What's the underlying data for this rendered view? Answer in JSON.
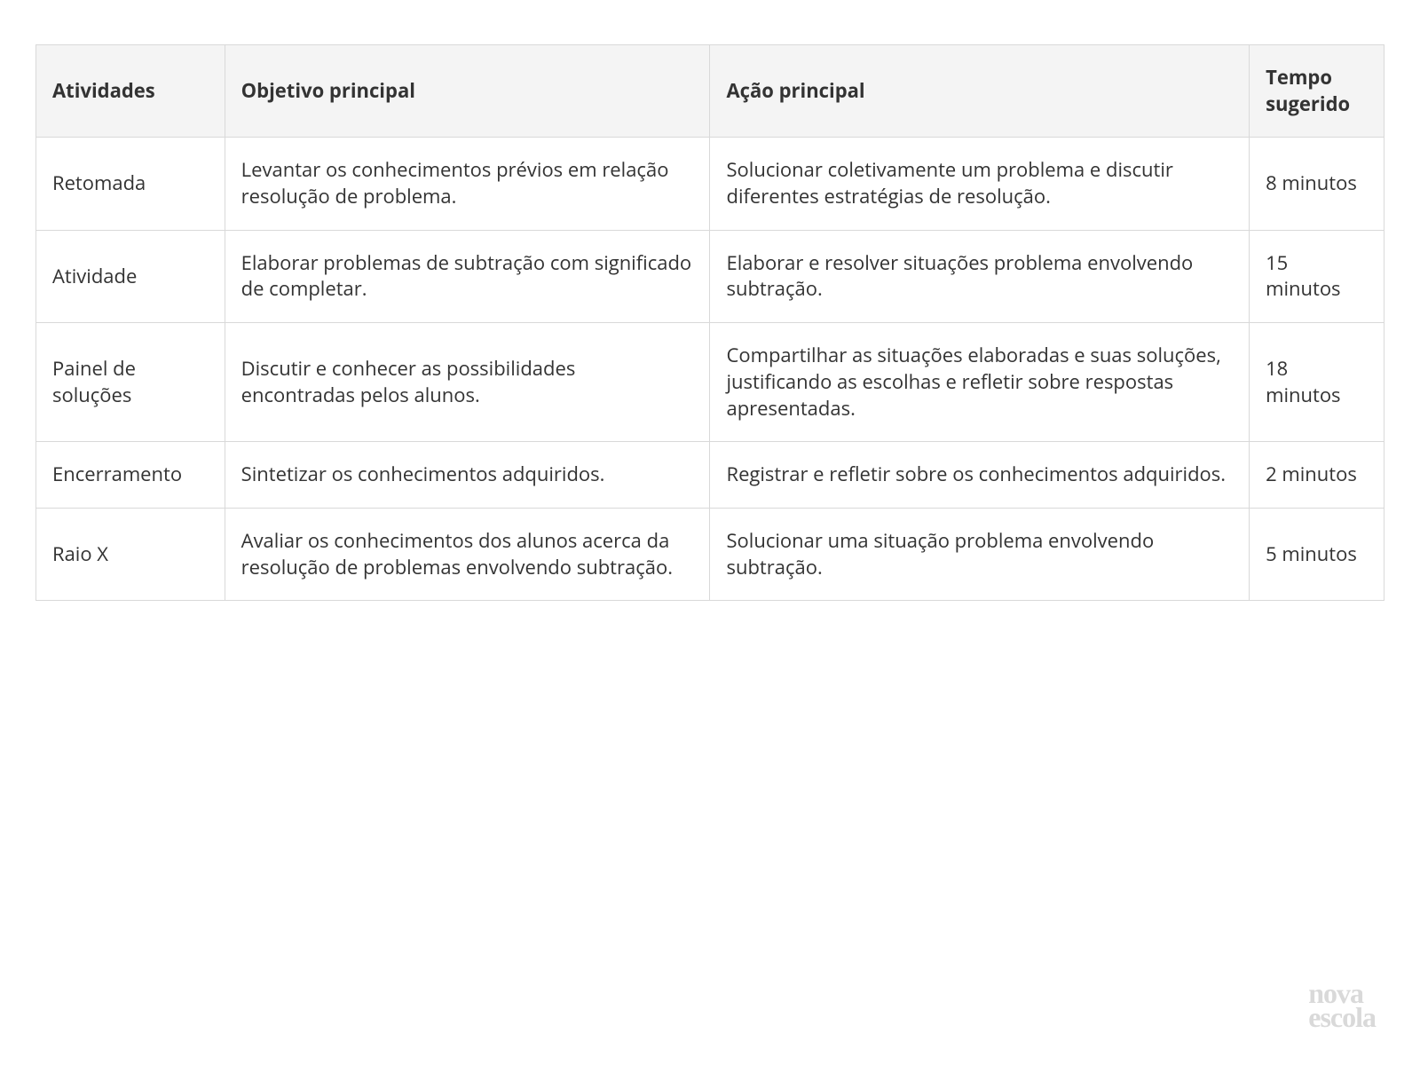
{
  "table": {
    "columns": [
      "Atividades",
      "Objetivo principal",
      "Ação principal",
      "Tempo sugerido"
    ],
    "column_widths_pct": [
      14,
      36,
      40,
      10
    ],
    "header_bg": "#f4f4f4",
    "border_color": "#d9d9d9",
    "text_color": "#333333",
    "font_size_pt": 16,
    "header_font_weight": 700,
    "rows": [
      {
        "atividade": "Retomada",
        "objetivo": "Levantar os conhecimentos prévios em relação resolução de problema.",
        "acao": "Solucionar coletivamente um problema e discutir diferentes estratégias de resolução.",
        "tempo": "8 minutos"
      },
      {
        "atividade": "Atividade",
        "objetivo": "Elaborar problemas de subtração com significado de completar.",
        "acao": "Elaborar e resolver situações problema envolvendo subtração.",
        "tempo": "15 minutos"
      },
      {
        "atividade": "Painel de soluções",
        "objetivo": "Discutir e conhecer as possibilidades encontradas pelos alunos.",
        "acao": "Compartilhar as situações elaboradas e suas soluções, justificando as escolhas e refletir sobre respostas apresentadas.",
        "tempo": "18 minutos"
      },
      {
        "atividade": "Encerramento",
        "objetivo": "Sintetizar os conhecimentos adquiridos.",
        "acao": "Registrar  e refletir sobre os conhecimentos adquiridos.",
        "tempo": "2 minutos"
      },
      {
        "atividade": "Raio X",
        "objetivo": "Avaliar os conhecimentos dos alunos acerca da resolução de problemas envolvendo subtração.",
        "acao": "Solucionar uma situação problema envolvendo subtração.",
        "tempo": "5 minutos"
      }
    ]
  },
  "logo": {
    "line1": "nova",
    "line2": "escola",
    "color": "#d9d9d9",
    "font_size_pt": 24
  }
}
